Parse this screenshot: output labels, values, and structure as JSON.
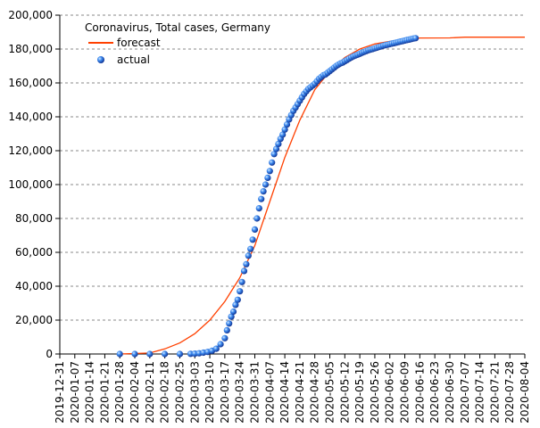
{
  "chart_data": {
    "type": "line",
    "title": "Coronavirus, Total cases, Germany",
    "xlabel": "",
    "ylabel": "",
    "x_axis": {
      "start": "2019-12-31",
      "end": "2020-08-04",
      "tick_labels": [
        "2019-12-31",
        "2020-01-07",
        "2020-01-14",
        "2020-01-21",
        "2020-01-28",
        "2020-02-04",
        "2020-02-11",
        "2020-02-18",
        "2020-02-25",
        "2020-03-03",
        "2020-03-10",
        "2020-03-17",
        "2020-03-24",
        "2020-03-31",
        "2020-04-07",
        "2020-04-14",
        "2020-04-21",
        "2020-04-28",
        "2020-05-05",
        "2020-05-12",
        "2020-05-19",
        "2020-05-26",
        "2020-06-02",
        "2020-06-09",
        "2020-06-16",
        "2020-06-23",
        "2020-06-30",
        "2020-07-07",
        "2020-07-14",
        "2020-07-21",
        "2020-07-28",
        "2020-08-04"
      ]
    },
    "y_axis": {
      "ylim": [
        0,
        200000
      ],
      "ticks": [
        0,
        20000,
        40000,
        60000,
        80000,
        100000,
        120000,
        140000,
        160000,
        180000,
        200000
      ],
      "tick_labels": [
        "0",
        "20,000",
        "40,000",
        "60,000",
        "80,000",
        "100,000",
        "120,000",
        "140,000",
        "160,000",
        "180,000",
        "200,000"
      ]
    },
    "grid": "horizontal dashed",
    "legend_position": "top-left",
    "series": [
      {
        "name": "forecast",
        "style": "line",
        "color": "#ff4000",
        "points": [
          [
            "2020-01-28",
            0
          ],
          [
            "2020-02-11",
            600
          ],
          [
            "2020-02-18",
            3000
          ],
          [
            "2020-02-25",
            6500
          ],
          [
            "2020-03-03",
            12000
          ],
          [
            "2020-03-10",
            20000
          ],
          [
            "2020-03-17",
            31000
          ],
          [
            "2020-03-24",
            45000
          ],
          [
            "2020-03-31",
            64000
          ],
          [
            "2020-04-07",
            90000
          ],
          [
            "2020-04-14",
            116000
          ],
          [
            "2020-04-21",
            138000
          ],
          [
            "2020-04-28",
            156000
          ],
          [
            "2020-05-05",
            167000
          ],
          [
            "2020-05-12",
            175000
          ],
          [
            "2020-05-19",
            180000
          ],
          [
            "2020-05-26",
            183000
          ],
          [
            "2020-06-02",
            184500
          ],
          [
            "2020-06-09",
            185500
          ],
          [
            "2020-06-16",
            186500
          ],
          [
            "2020-06-30",
            186600
          ],
          [
            "2020-07-07",
            187000
          ],
          [
            "2020-08-04",
            187000
          ]
        ]
      },
      {
        "name": "actual",
        "style": "marker",
        "color": "#1a5fd6",
        "points": [
          [
            "2020-01-28",
            4
          ],
          [
            "2020-02-04",
            12
          ],
          [
            "2020-02-11",
            16
          ],
          [
            "2020-02-18",
            16
          ],
          [
            "2020-02-25",
            18
          ],
          [
            "2020-03-01",
            130
          ],
          [
            "2020-03-03",
            200
          ],
          [
            "2020-03-05",
            400
          ],
          [
            "2020-03-07",
            800
          ],
          [
            "2020-03-09",
            1200
          ],
          [
            "2020-03-11",
            1900
          ],
          [
            "2020-03-13",
            3100
          ],
          [
            "2020-03-15",
            5800
          ],
          [
            "2020-03-17",
            9300
          ],
          [
            "2020-03-18",
            14000
          ],
          [
            "2020-03-19",
            18000
          ],
          [
            "2020-03-20",
            22000
          ],
          [
            "2020-03-21",
            25000
          ],
          [
            "2020-03-22",
            29000
          ],
          [
            "2020-03-23",
            32000
          ],
          [
            "2020-03-24",
            37000
          ],
          [
            "2020-03-25",
            42500
          ],
          [
            "2020-03-26",
            49000
          ],
          [
            "2020-03-27",
            53000
          ],
          [
            "2020-03-28",
            58000
          ],
          [
            "2020-03-29",
            62000
          ],
          [
            "2020-03-30",
            67500
          ],
          [
            "2020-03-31",
            73500
          ],
          [
            "2020-04-01",
            80000
          ],
          [
            "2020-04-02",
            86000
          ],
          [
            "2020-04-03",
            91500
          ],
          [
            "2020-04-04",
            96000
          ],
          [
            "2020-04-05",
            100000
          ],
          [
            "2020-04-06",
            104000
          ],
          [
            "2020-04-07",
            108000
          ],
          [
            "2020-04-08",
            113000
          ],
          [
            "2020-04-09",
            118000
          ],
          [
            "2020-04-10",
            121000
          ],
          [
            "2020-04-11",
            124000
          ],
          [
            "2020-04-12",
            127000
          ],
          [
            "2020-04-13",
            129500
          ],
          [
            "2020-04-14",
            132500
          ],
          [
            "2020-04-15",
            135500
          ],
          [
            "2020-04-16",
            138500
          ],
          [
            "2020-04-17",
            141000
          ],
          [
            "2020-04-18",
            143500
          ],
          [
            "2020-04-19",
            145500
          ],
          [
            "2020-04-20",
            147500
          ],
          [
            "2020-04-21",
            149500
          ],
          [
            "2020-04-22",
            151500
          ],
          [
            "2020-04-23",
            153500
          ],
          [
            "2020-04-24",
            155000
          ],
          [
            "2020-04-25",
            156500
          ],
          [
            "2020-04-26",
            157500
          ],
          [
            "2020-04-27",
            158500
          ],
          [
            "2020-04-28",
            159500
          ],
          [
            "2020-04-29",
            161000
          ],
          [
            "2020-04-30",
            162500
          ],
          [
            "2020-05-01",
            163500
          ],
          [
            "2020-05-02",
            164500
          ],
          [
            "2020-05-03",
            165000
          ],
          [
            "2020-05-04",
            166000
          ],
          [
            "2020-05-05",
            167000
          ],
          [
            "2020-05-06",
            168000
          ],
          [
            "2020-05-07",
            169000
          ],
          [
            "2020-05-08",
            170000
          ],
          [
            "2020-05-09",
            170800
          ],
          [
            "2020-05-10",
            171500
          ],
          [
            "2020-05-11",
            172000
          ],
          [
            "2020-05-12",
            172800
          ],
          [
            "2020-05-13",
            173500
          ],
          [
            "2020-05-14",
            174300
          ],
          [
            "2020-05-15",
            175000
          ],
          [
            "2020-05-16",
            175700
          ],
          [
            "2020-05-17",
            176200
          ],
          [
            "2020-05-18",
            176700
          ],
          [
            "2020-05-19",
            177200
          ],
          [
            "2020-05-20",
            177800
          ],
          [
            "2020-05-21",
            178300
          ],
          [
            "2020-05-22",
            178800
          ],
          [
            "2020-05-23",
            179300
          ],
          [
            "2020-05-24",
            179700
          ],
          [
            "2020-05-25",
            180000
          ],
          [
            "2020-05-26",
            180400
          ],
          [
            "2020-05-27",
            180800
          ],
          [
            "2020-05-28",
            181200
          ],
          [
            "2020-05-29",
            181600
          ],
          [
            "2020-05-30",
            182000
          ],
          [
            "2020-05-31",
            182300
          ],
          [
            "2020-06-01",
            182600
          ],
          [
            "2020-06-02",
            182900
          ],
          [
            "2020-06-03",
            183200
          ],
          [
            "2020-06-04",
            183500
          ],
          [
            "2020-06-05",
            183800
          ],
          [
            "2020-06-06",
            184100
          ],
          [
            "2020-06-07",
            184400
          ],
          [
            "2020-06-08",
            184700
          ],
          [
            "2020-06-09",
            185000
          ],
          [
            "2020-06-10",
            185300
          ],
          [
            "2020-06-11",
            185600
          ],
          [
            "2020-06-12",
            185900
          ],
          [
            "2020-06-13",
            186200
          ],
          [
            "2020-06-14",
            186400
          ]
        ]
      }
    ]
  }
}
